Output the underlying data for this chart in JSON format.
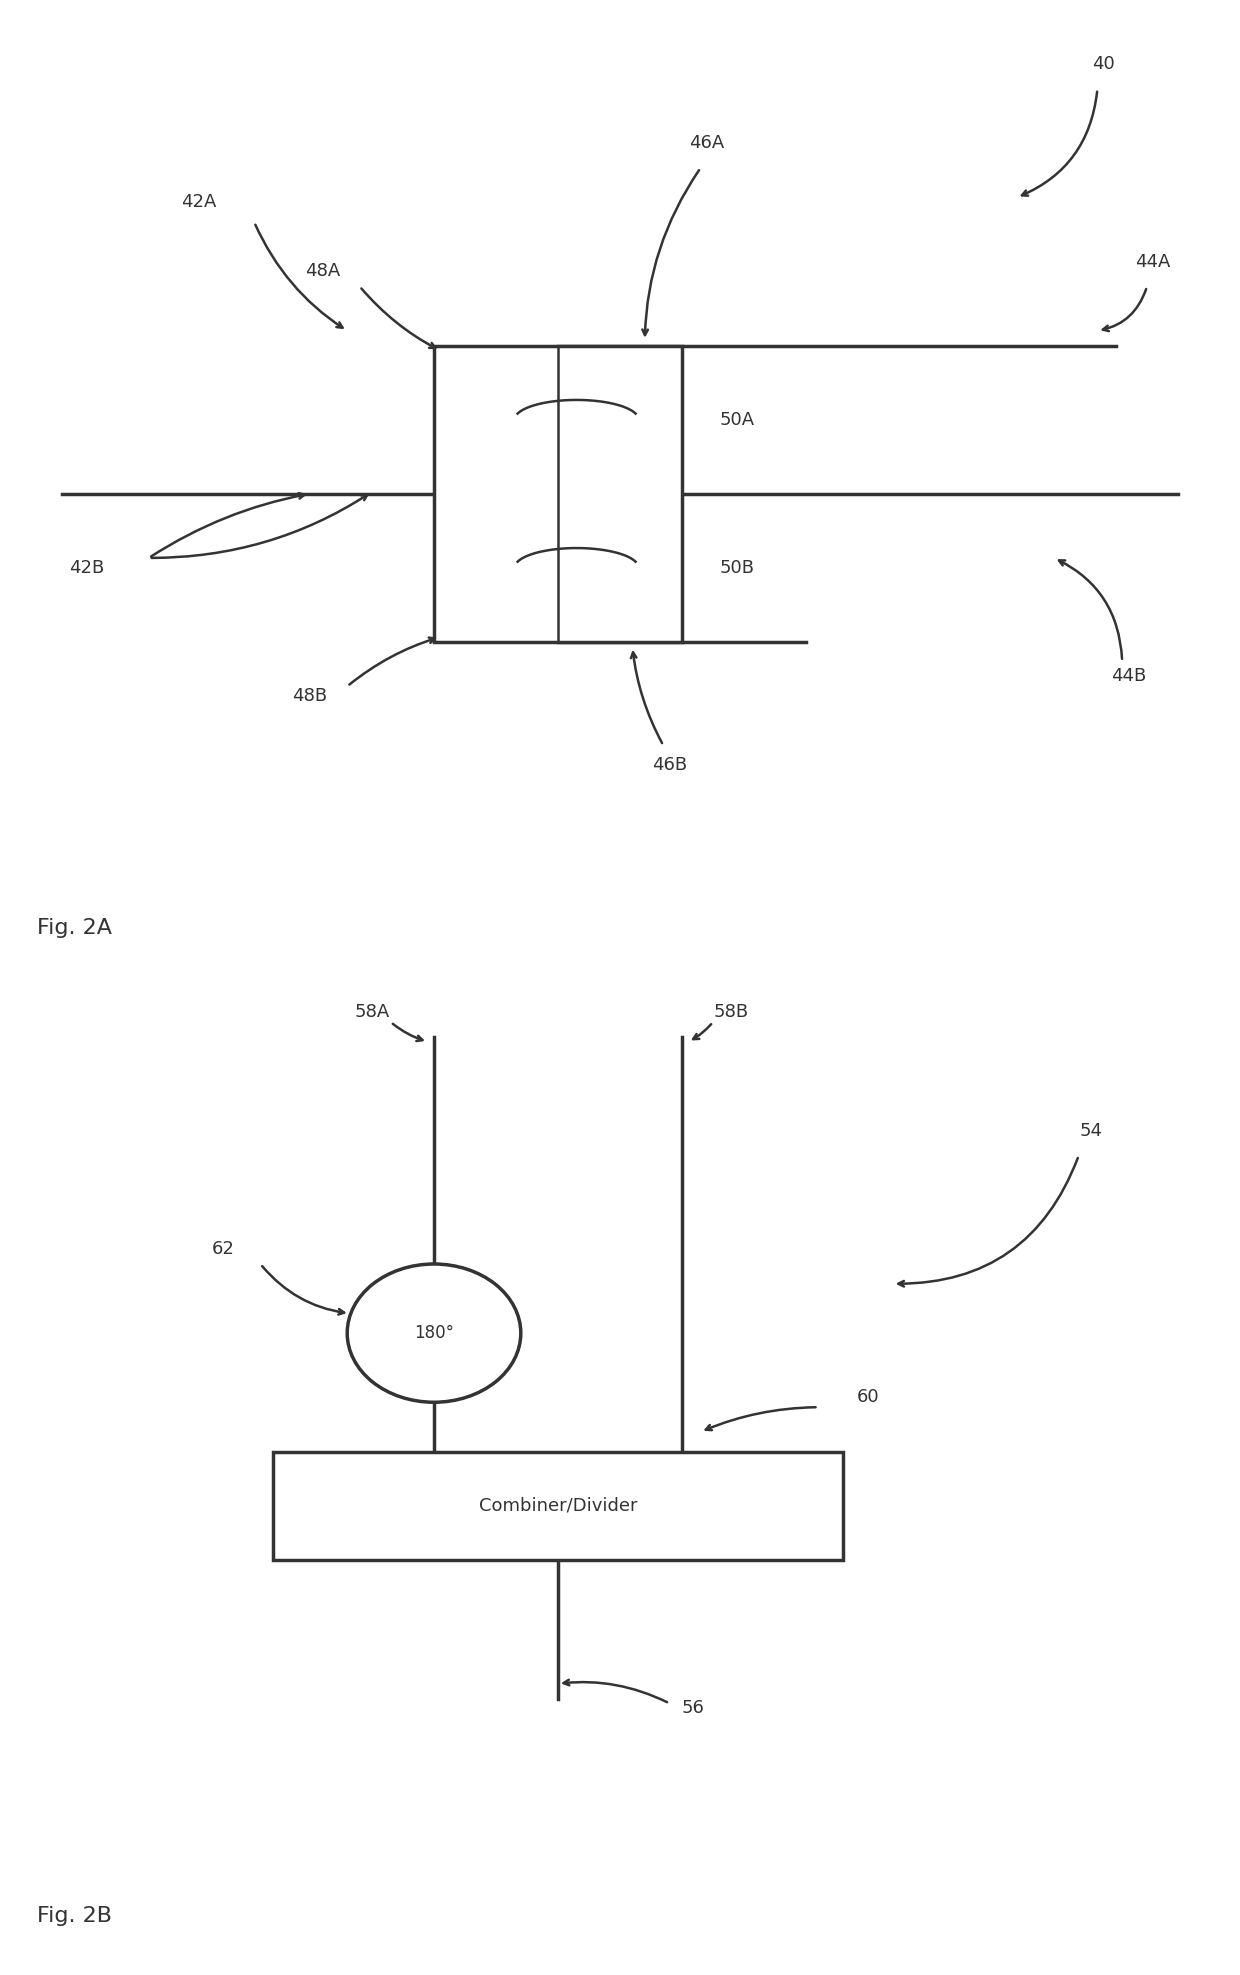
{
  "bg_color": "#ffffff",
  "line_color": "#333333",
  "fig2a": {
    "title": "Fig. 2A",
    "label_40": "40",
    "label_42A": "42A",
    "label_42B": "42B",
    "label_44A": "44A",
    "label_44B": "44B",
    "label_46A": "46A",
    "label_46B": "46B",
    "label_48A": "48A",
    "label_48B": "48B",
    "label_50A": "50A",
    "label_50B": "50B"
  },
  "fig2b": {
    "title": "Fig. 2B",
    "label_54": "54",
    "label_56": "56",
    "label_58A": "58A",
    "label_58B": "58B",
    "label_60": "60",
    "label_62": "62",
    "combiner_text": "Combiner/Divider",
    "phase_text": "180°"
  }
}
